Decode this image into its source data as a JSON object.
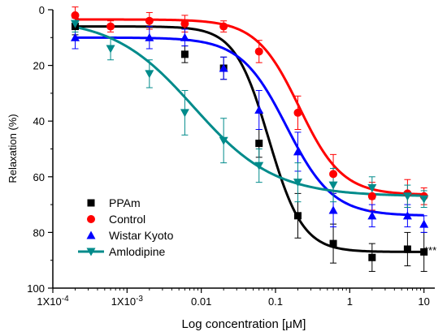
{
  "chart_data": {
    "type": "scatter",
    "xlabel": "Log concentration [μM]",
    "ylabel": "Relaxation (%)",
    "xscale": "log",
    "xlim": [
      0.0001,
      14
    ],
    "ylim": [
      0,
      100
    ],
    "y_inverted": true,
    "x_ticks": [
      {
        "value": 0.0001,
        "label": "1X10-4"
      },
      {
        "value": 0.001,
        "label": "1X10-3"
      },
      {
        "value": 0.01,
        "label": "0.01"
      },
      {
        "value": 0.1,
        "label": "0.1"
      },
      {
        "value": 1,
        "label": "1"
      },
      {
        "value": 10,
        "label": "10"
      }
    ],
    "y_ticks": [
      0,
      20,
      40,
      60,
      80,
      100
    ],
    "legend_position": "bottom-left",
    "annotation": "***",
    "series": [
      {
        "name": "PPAm",
        "color": "#000000",
        "marker": "square",
        "x": [
          0.0002,
          0.006,
          0.02,
          0.06,
          0.2,
          0.6,
          2,
          6,
          10
        ],
        "y": [
          6,
          16,
          21,
          48,
          74,
          84,
          89,
          86,
          87
        ],
        "err": [
          3,
          3,
          4,
          5,
          8,
          7,
          5,
          6,
          7
        ],
        "fit": {
          "top": 6,
          "bottom": 87,
          "log_ec50": -1.09,
          "hill": 1.9
        }
      },
      {
        "name": "Control",
        "color": "#ff0000",
        "marker": "circle",
        "x": [
          0.0002,
          0.0006,
          0.002,
          0.006,
          0.02,
          0.06,
          0.2,
          0.6,
          2,
          6,
          10
        ],
        "y": [
          2,
          6,
          4,
          5,
          6,
          15,
          37,
          59,
          67,
          66,
          67
        ],
        "err": [
          3,
          2,
          3,
          3,
          2,
          4,
          6,
          7,
          5,
          5,
          3
        ],
        "fit": {
          "top": 3.5,
          "bottom": 66.5,
          "log_ec50": -0.68,
          "hill": 1.5
        }
      },
      {
        "name": "Wistar Kyoto",
        "color": "#0000ff",
        "marker": "triangle-up",
        "x": [
          0.0002,
          0.002,
          0.006,
          0.02,
          0.06,
          0.2,
          0.6,
          2,
          6,
          10
        ],
        "y": [
          10,
          10,
          10,
          21,
          36,
          51,
          72,
          74,
          74,
          77
        ],
        "err": [
          4,
          4,
          3,
          4,
          7,
          7,
          6,
          4,
          4,
          3
        ],
        "fit": {
          "top": 10,
          "bottom": 74,
          "log_ec50": -0.85,
          "hill": 1.4
        }
      },
      {
        "name": "Amlodipine",
        "color": "#008b8b",
        "marker": "triangle-down",
        "x": [
          0.0002,
          0.0006,
          0.002,
          0.006,
          0.02,
          0.06,
          0.2,
          0.6,
          2,
          6,
          10
        ],
        "y": [
          5,
          14,
          23,
          37,
          47,
          56,
          62,
          63,
          64,
          67,
          68
        ],
        "err": [
          3,
          4,
          5,
          8,
          8,
          6,
          7,
          6,
          4,
          4,
          3
        ],
        "fit": {
          "top": 3,
          "bottom": 67,
          "log_ec50": -2.1,
          "hill": 0.8
        }
      }
    ]
  }
}
